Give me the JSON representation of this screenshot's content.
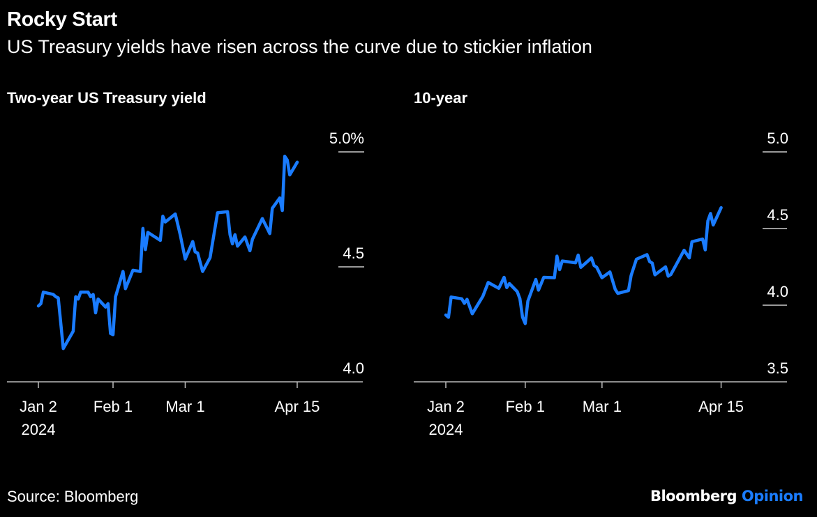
{
  "header": {
    "title": "Rocky Start",
    "subtitle": "US Treasury yields have risen across the curve due to stickier inflation"
  },
  "footer": {
    "source": "Source: Bloomberg",
    "logo_brand": "Bloomberg",
    "logo_section": "Opinion"
  },
  "colors": {
    "background": "#000000",
    "line": "#1a7cff",
    "text": "#ffffff",
    "logo_accent": "#1a7cff"
  },
  "chart_data": [
    {
      "type": "line",
      "title": "Two-year US Treasury yield",
      "ylim": [
        4.0,
        5.0
      ],
      "y_ticks": [
        4.0,
        4.5,
        5.0
      ],
      "y_tick_labels": [
        "4.0",
        "4.5",
        "5.0%"
      ],
      "x_ticks": [
        "2024-01-02",
        "2024-02-01",
        "2024-03-01",
        "2024-04-15"
      ],
      "x_tick_labels": [
        "Jan 2",
        "Feb 1",
        "Mar 1",
        "Apr 15"
      ],
      "x_year_label": "2024",
      "grid": false,
      "series": [
        {
          "x": [
            "2024-01-02",
            "2024-01-03",
            "2024-01-04",
            "2024-01-08",
            "2024-01-09",
            "2024-01-10",
            "2024-01-12",
            "2024-01-16",
            "2024-01-17",
            "2024-01-18",
            "2024-01-19",
            "2024-01-22",
            "2024-01-23",
            "2024-01-24",
            "2024-01-25",
            "2024-01-26",
            "2024-01-29",
            "2024-01-30",
            "2024-01-31",
            "2024-02-01",
            "2024-02-02",
            "2024-02-05",
            "2024-02-06",
            "2024-02-09",
            "2024-02-12",
            "2024-02-13",
            "2024-02-14",
            "2024-02-15",
            "2024-02-20",
            "2024-02-21",
            "2024-02-22",
            "2024-02-26",
            "2024-02-28",
            "2024-03-01",
            "2024-03-04",
            "2024-03-05",
            "2024-03-06",
            "2024-03-08",
            "2024-03-11",
            "2024-03-14",
            "2024-03-18",
            "2024-03-19",
            "2024-03-20",
            "2024-03-21",
            "2024-03-22",
            "2024-03-25",
            "2024-03-27",
            "2024-03-28",
            "2024-04-01",
            "2024-04-04",
            "2024-04-05",
            "2024-04-08",
            "2024-04-09",
            "2024-04-10",
            "2024-04-11",
            "2024-04-12",
            "2024-04-15"
          ],
          "y": [
            4.33,
            4.34,
            4.39,
            4.38,
            4.37,
            4.365,
            4.145,
            4.22,
            4.37,
            4.36,
            4.39,
            4.39,
            4.37,
            4.38,
            4.3,
            4.36,
            4.325,
            4.34,
            4.21,
            4.205,
            4.37,
            4.48,
            4.405,
            4.485,
            4.48,
            4.667,
            4.575,
            4.65,
            4.615,
            4.72,
            4.695,
            4.73,
            4.64,
            4.534,
            4.61,
            4.565,
            4.56,
            4.48,
            4.54,
            4.735,
            4.74,
            4.64,
            4.6,
            4.64,
            4.59,
            4.63,
            4.57,
            4.62,
            4.71,
            4.645,
            4.755,
            4.8,
            4.745,
            4.981,
            4.965,
            4.9,
            4.955
          ]
        }
      ]
    },
    {
      "type": "line",
      "title": "10-year",
      "ylim": [
        3.5,
        5.0
      ],
      "y_ticks": [
        3.5,
        4.0,
        4.5,
        5.0
      ],
      "y_tick_labels": [
        "3.5",
        "4.0",
        "4.5",
        "5.0"
      ],
      "x_ticks": [
        "2024-01-02",
        "2024-02-01",
        "2024-03-01",
        "2024-04-15"
      ],
      "x_tick_labels": [
        "Jan 2",
        "Feb 1",
        "Mar 1",
        "Apr 15"
      ],
      "x_year_label": "2024",
      "grid": false,
      "series": [
        {
          "x": [
            "2024-01-02",
            "2024-01-03",
            "2024-01-04",
            "2024-01-08",
            "2024-01-09",
            "2024-01-10",
            "2024-01-12",
            "2024-01-16",
            "2024-01-18",
            "2024-01-22",
            "2024-01-24",
            "2024-01-25",
            "2024-01-26",
            "2024-01-29",
            "2024-01-30",
            "2024-01-31",
            "2024-02-01",
            "2024-02-02",
            "2024-02-05",
            "2024-02-06",
            "2024-02-08",
            "2024-02-12",
            "2024-02-13",
            "2024-02-14",
            "2024-02-15",
            "2024-02-20",
            "2024-02-21",
            "2024-02-22",
            "2024-02-26",
            "2024-02-27",
            "2024-02-28",
            "2024-03-01",
            "2024-03-04",
            "2024-03-06",
            "2024-03-07",
            "2024-03-11",
            "2024-03-12",
            "2024-03-14",
            "2024-03-18",
            "2024-03-19",
            "2024-03-20",
            "2024-03-21",
            "2024-03-25",
            "2024-03-26",
            "2024-03-27",
            "2024-04-01",
            "2024-04-03",
            "2024-04-04",
            "2024-04-08",
            "2024-04-09",
            "2024-04-10",
            "2024-04-11",
            "2024-04-12",
            "2024-04-15"
          ],
          "y": [
            3.936,
            3.921,
            4.053,
            4.042,
            4.012,
            4.038,
            3.944,
            4.058,
            4.148,
            4.11,
            4.182,
            4.115,
            4.141,
            4.088,
            4.042,
            3.921,
            3.88,
            4.027,
            4.168,
            4.098,
            4.182,
            4.179,
            4.32,
            4.232,
            4.288,
            4.277,
            4.327,
            4.247,
            4.308,
            4.259,
            4.247,
            4.179,
            4.217,
            4.103,
            4.077,
            4.095,
            4.194,
            4.3,
            4.33,
            4.285,
            4.274,
            4.198,
            4.25,
            4.189,
            4.2,
            4.358,
            4.308,
            4.414,
            4.432,
            4.361,
            4.55,
            4.598,
            4.523,
            4.636
          ]
        }
      ]
    }
  ]
}
